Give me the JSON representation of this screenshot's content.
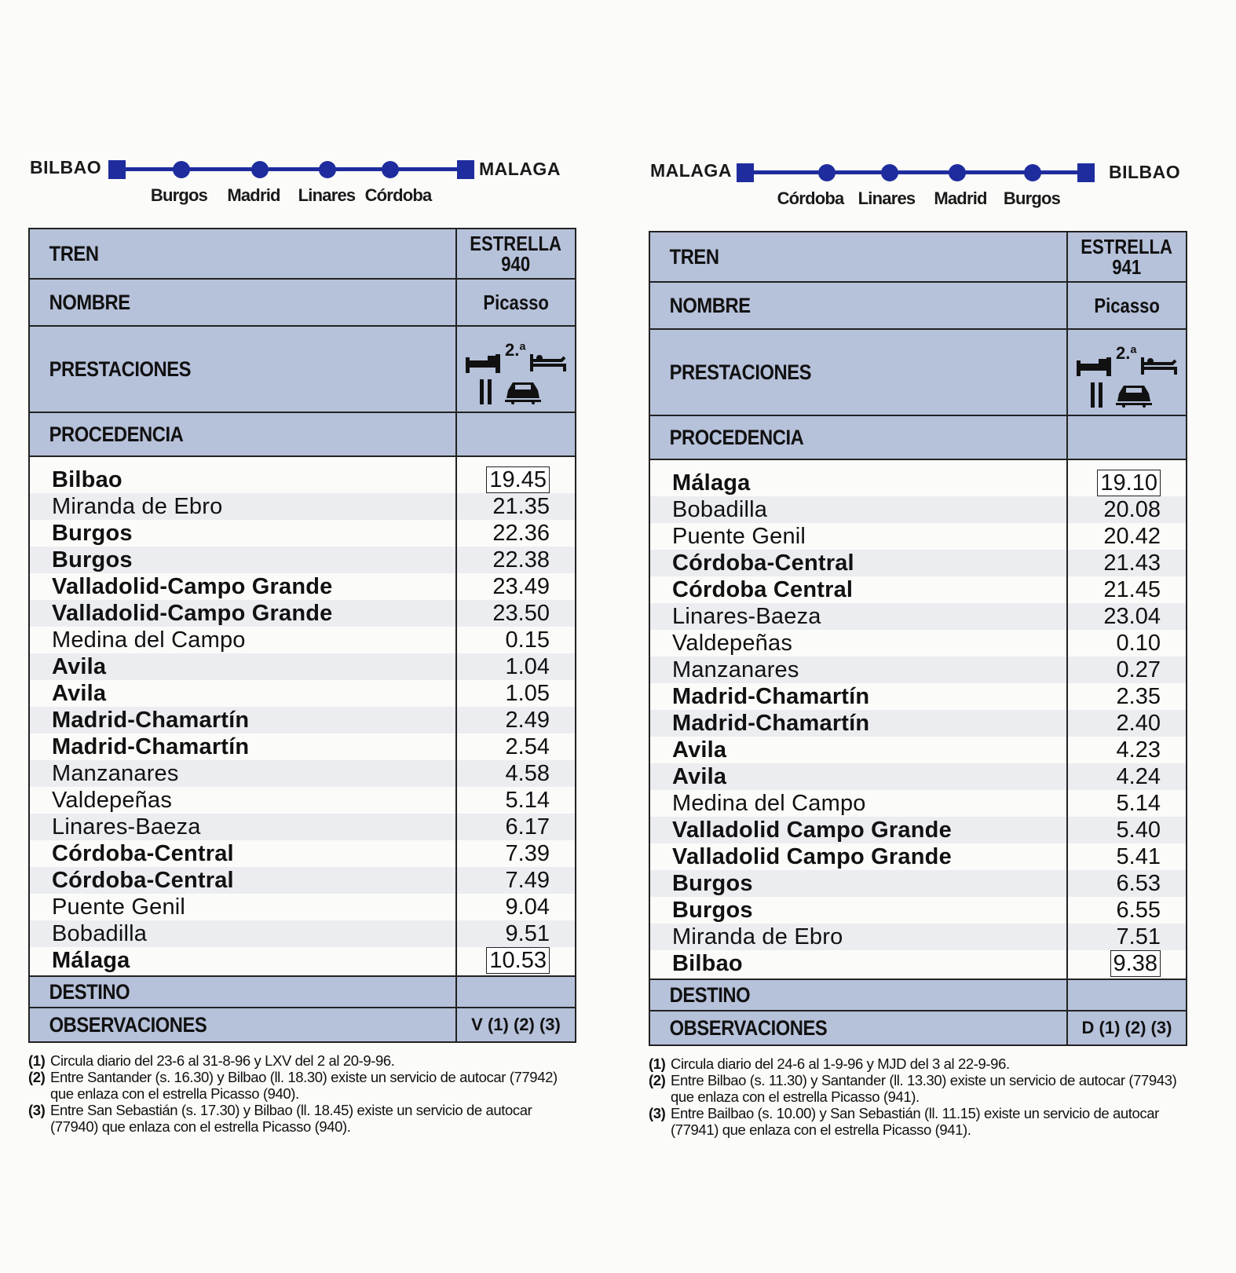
{
  "left": {
    "route": {
      "from": "BILBAO",
      "to": "MALAGA",
      "stops": [
        "Burgos",
        "Madrid",
        "Linares",
        "Córdoba"
      ]
    },
    "header": {
      "tren_label": "TREN",
      "tren_value_1": "ESTRELLA",
      "tren_value_2": "940",
      "nombre_label": "NOMBRE",
      "nombre_value": "Picasso",
      "prestaciones_label": "PRESTACIONES",
      "clase": "2.ª",
      "procedencia_label": "PROCEDENCIA"
    },
    "rows": [
      {
        "station": "Bilbao",
        "time": "19.45",
        "bold": true,
        "boxed": true
      },
      {
        "station": "Miranda de Ebro",
        "time": "21.35",
        "bold": false,
        "boxed": false
      },
      {
        "station": "Burgos",
        "time": "22.36",
        "bold": true,
        "boxed": false
      },
      {
        "station": "Burgos",
        "time": "22.38",
        "bold": true,
        "boxed": false
      },
      {
        "station": "Valladolid-Campo Grande",
        "time": "23.49",
        "bold": true,
        "boxed": false
      },
      {
        "station": "Valladolid-Campo Grande",
        "time": "23.50",
        "bold": true,
        "boxed": false
      },
      {
        "station": "Medina del Campo",
        "time": "0.15",
        "bold": false,
        "boxed": false
      },
      {
        "station": "Avila",
        "time": "1.04",
        "bold": true,
        "boxed": false
      },
      {
        "station": "Avila",
        "time": "1.05",
        "bold": true,
        "boxed": false
      },
      {
        "station": "Madrid-Chamartín",
        "time": "2.49",
        "bold": true,
        "boxed": false
      },
      {
        "station": "Madrid-Chamartín",
        "time": "2.54",
        "bold": true,
        "boxed": false
      },
      {
        "station": "Manzanares",
        "time": "4.58",
        "bold": false,
        "boxed": false
      },
      {
        "station": "Valdepeñas",
        "time": "5.14",
        "bold": false,
        "boxed": false
      },
      {
        "station": "Linares-Baeza",
        "time": "6.17",
        "bold": false,
        "boxed": false
      },
      {
        "station": "Córdoba-Central",
        "time": "7.39",
        "bold": true,
        "boxed": false
      },
      {
        "station": "Córdoba-Central",
        "time": "7.49",
        "bold": true,
        "boxed": false
      },
      {
        "station": "Puente Genil",
        "time": "9.04",
        "bold": false,
        "boxed": false
      },
      {
        "station": "Bobadilla",
        "time": "9.51",
        "bold": false,
        "boxed": false
      },
      {
        "station": "Málaga",
        "time": "10.53",
        "bold": true,
        "boxed": true
      }
    ],
    "footer": {
      "destino_label": "DESTINO",
      "observaciones_label": "OBSERVACIONES",
      "observaciones_value": "V (1) (2) (3)"
    },
    "notes": [
      {
        "num": "(1)",
        "text": "Circula diario del 23-6 al 31-8-96 y LXV del 2 al 20-9-96."
      },
      {
        "num": "(2)",
        "text": "Entre Santander (s. 16.30) y Bilbao (ll. 18.30) existe un servicio de autocar (77942) que enlaza con el estrella Picasso (940)."
      },
      {
        "num": "(3)",
        "text": "Entre San Sebastián (s. 17.30) y Bilbao (ll. 18.45) existe un servicio de autocar (77940) que enlaza con el estrella Picasso (940)."
      }
    ]
  },
  "right": {
    "route": {
      "from": "MALAGA",
      "to": "BILBAO",
      "stops": [
        "Córdoba",
        "Linares",
        "Madrid",
        "Burgos"
      ]
    },
    "header": {
      "tren_label": "TREN",
      "tren_value_1": "ESTRELLA",
      "tren_value_2": "941",
      "nombre_label": "NOMBRE",
      "nombre_value": "Picasso",
      "prestaciones_label": "PRESTACIONES",
      "clase": "2.ª",
      "procedencia_label": "PROCEDENCIA"
    },
    "rows": [
      {
        "station": "Málaga",
        "time": "19.10",
        "bold": true,
        "boxed": true
      },
      {
        "station": "Bobadilla",
        "time": "20.08",
        "bold": false,
        "boxed": false
      },
      {
        "station": "Puente Genil",
        "time": "20.42",
        "bold": false,
        "boxed": false
      },
      {
        "station": "Córdoba-Central",
        "time": "21.43",
        "bold": true,
        "boxed": false
      },
      {
        "station": "Córdoba Central",
        "time": "21.45",
        "bold": true,
        "boxed": false
      },
      {
        "station": "Linares-Baeza",
        "time": "23.04",
        "bold": false,
        "boxed": false
      },
      {
        "station": "Valdepeñas",
        "time": "0.10",
        "bold": false,
        "boxed": false
      },
      {
        "station": "Manzanares",
        "time": "0.27",
        "bold": false,
        "boxed": false
      },
      {
        "station": "Madrid-Chamartín",
        "time": "2.35",
        "bold": true,
        "boxed": false
      },
      {
        "station": "Madrid-Chamartín",
        "time": "2.40",
        "bold": true,
        "boxed": false
      },
      {
        "station": "Avila",
        "time": "4.23",
        "bold": true,
        "boxed": false
      },
      {
        "station": "Avila",
        "time": "4.24",
        "bold": true,
        "boxed": false
      },
      {
        "station": "Medina del Campo",
        "time": "5.14",
        "bold": false,
        "boxed": false
      },
      {
        "station": "Valladolid Campo Grande",
        "time": "5.40",
        "bold": true,
        "boxed": false
      },
      {
        "station": "Valladolid Campo Grande",
        "time": "5.41",
        "bold": true,
        "boxed": false
      },
      {
        "station": "Burgos",
        "time": "6.53",
        "bold": true,
        "boxed": false
      },
      {
        "station": "Burgos",
        "time": "6.55",
        "bold": true,
        "boxed": false
      },
      {
        "station": "Miranda de Ebro",
        "time": "7.51",
        "bold": false,
        "boxed": false
      },
      {
        "station": "Bilbao",
        "time": "9.38",
        "bold": true,
        "boxed": true
      }
    ],
    "footer": {
      "destino_label": "DESTINO",
      "observaciones_label": "OBSERVACIONES",
      "observaciones_value": "D (1) (2) (3)"
    },
    "notes": [
      {
        "num": "(1)",
        "text": "Circula diario del 24-6 al 1-9-96 y MJD del 3 al 22-9-96."
      },
      {
        "num": "(2)",
        "text": "Entre Bilbao (s. 11.30) y Santander (ll. 13.30) existe un servicio de autocar (77943) que enlaza con el estrella Picasso (941)."
      },
      {
        "num": "(3)",
        "text": "Entre Bailbao (s. 10.00) y San Sebastián (ll. 11.15) existe un servicio de autocar (77941) que enlaza con el estrella Picasso (941)."
      }
    ]
  },
  "icons": [
    "bed-icon",
    "couchette-icon",
    "restaurant-icon",
    "car-transport-icon"
  ],
  "colors": {
    "route_blue": "#1f2c9e",
    "header_bg": "#b6c1da"
  }
}
